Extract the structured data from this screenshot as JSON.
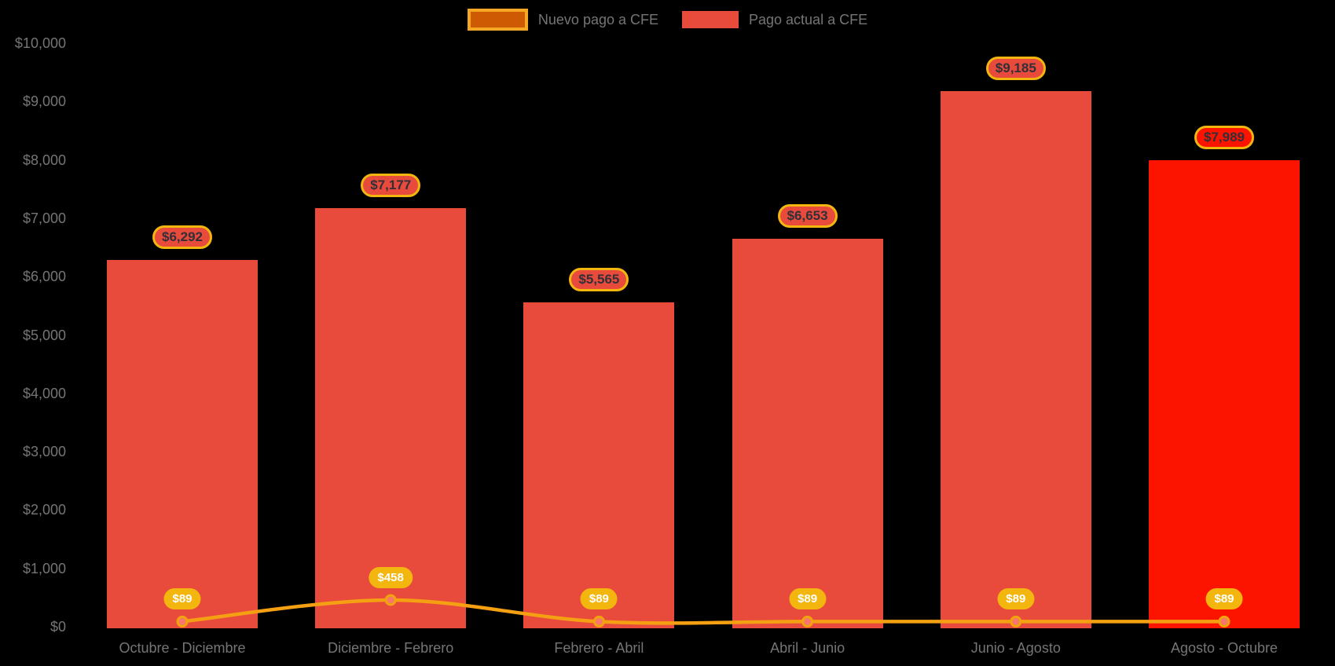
{
  "legend": {
    "items": [
      {
        "label": "Nuevo pago a CFE",
        "swatch": "line"
      },
      {
        "label": "Pago actual a CFE",
        "swatch": "bar"
      }
    ]
  },
  "chart_data": {
    "type": "combo",
    "categories": [
      "Octubre - Diciembre",
      "Diciembre - Febrero",
      "Febrero - Abril",
      "Abril - Junio",
      "Junio - Agosto",
      "Agosto - Octubre"
    ],
    "series": [
      {
        "name": "Pago actual a CFE",
        "type": "bar",
        "values": [
          6292,
          7177,
          5565,
          6653,
          9185,
          7989
        ],
        "labels": [
          "$6,292",
          "$7,177",
          "$5,565",
          "$6,653",
          "$9,185",
          "$7,989"
        ],
        "bar_colors": [
          "#E84B3C",
          "#E84B3C",
          "#E84B3C",
          "#E84B3C",
          "#E84B3C",
          "#FD1400"
        ]
      },
      {
        "name": "Nuevo pago a CFE",
        "type": "line",
        "values": [
          89,
          458,
          89,
          89,
          89,
          89
        ],
        "labels": [
          "$89",
          "$458",
          "$89",
          "$89",
          "$89",
          "$89"
        ],
        "color": "#F5A012"
      }
    ],
    "y_axis": {
      "min": 0,
      "max": 10000,
      "tick_step": 1000,
      "tick_labels": [
        "$0",
        "$1,000",
        "$2,000",
        "$3,000",
        "$4,000",
        "$5,000",
        "$6,000",
        "$7,000",
        "$8,000",
        "$9,000",
        "$10,000"
      ]
    },
    "legend_position": "top",
    "grid": false,
    "background": "black"
  },
  "colors": {
    "background": "#000000",
    "bar_default": "#E84B3C",
    "bar_highlight": "#FD1400",
    "line": "#F5A012",
    "marker_fill": "#F8766B",
    "marker_stroke": "#F0A30D",
    "gold": "#F2B60E",
    "value_pill_border": "#F2B60E",
    "value_pill_text": "#322F38",
    "line_pill_bg": "#F2B60E",
    "line_pill_text": "#FFFFFF",
    "axis_text": "#757575",
    "legend_text": "#757575",
    "legend_line_swatch_fill": "#CE5A04",
    "legend_line_swatch_border": "#F5A623"
  }
}
